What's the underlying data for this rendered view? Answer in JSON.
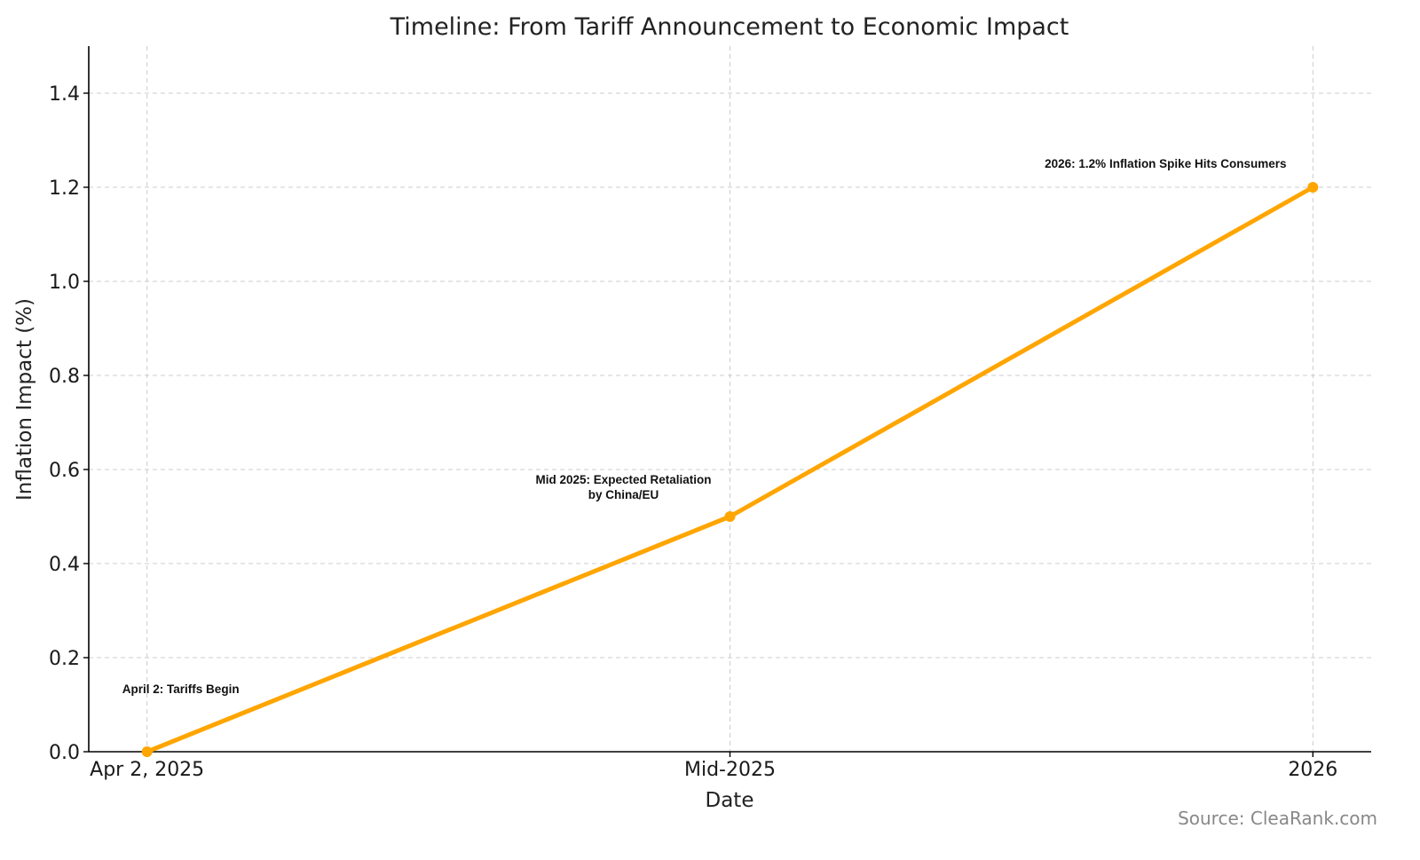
{
  "chart_data": {
    "type": "line",
    "title": "Timeline: From Tariff Announcement to Economic Impact",
    "xlabel": "Date",
    "ylabel": "Inflation Impact (%)",
    "categories": [
      "Apr 2, 2025",
      "Mid-2025",
      "2026"
    ],
    "values": [
      0.0,
      0.5,
      1.2
    ],
    "ylim": [
      0,
      1.5
    ],
    "yticks": [
      "0.0",
      "0.2",
      "0.4",
      "0.6",
      "0.8",
      "1.0",
      "1.2",
      "1.4"
    ],
    "ytick_values": [
      0,
      0.2,
      0.4,
      0.6,
      0.8,
      1.0,
      1.2,
      1.4
    ],
    "grid": true,
    "line_color": "#FFA500",
    "annotations": [
      {
        "index": 0,
        "lines": [
          "April 2: Tariffs Begin"
        ]
      },
      {
        "index": 1,
        "lines": [
          "Mid 2025: Expected Retaliation",
          "by China/EU"
        ]
      },
      {
        "index": 2,
        "lines": [
          "2026: 1.2% Inflation Spike Hits Consumers"
        ]
      }
    ],
    "source": "Source: CleaRank.com"
  }
}
